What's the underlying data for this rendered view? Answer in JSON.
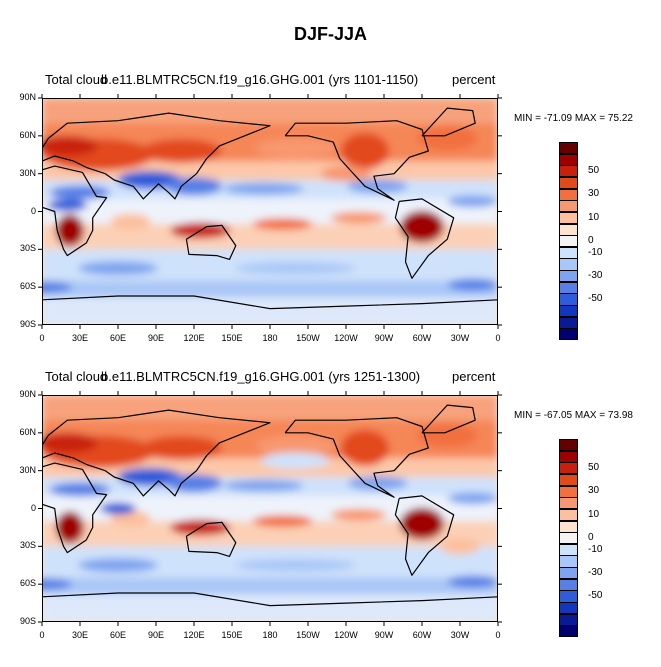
{
  "title": "DJF-JJA",
  "colorbar": {
    "colors": [
      "#650000",
      "#9e0000",
      "#c9200e",
      "#e24a1a",
      "#f26f3f",
      "#f89870",
      "#fcc09e",
      "#fde2cf",
      "#f4f4f4",
      "#cfe2fb",
      "#a8c6f7",
      "#7ea4ef",
      "#5680e6",
      "#2f5cd9",
      "#1236bd",
      "#0a1a96",
      "#00006e"
    ],
    "labels": [
      "50",
      "30",
      "10",
      "0",
      "-10",
      "-30",
      "-50"
    ]
  },
  "panels": [
    {
      "left_label": "Total cloud",
      "center_label": "b.e11.BLMTRC5CN.f19_g16.GHG.001 (yrs 1101-1150)",
      "right_label": "percent",
      "minmax": "MIN = -71.09 MAX =  75.22"
    },
    {
      "left_label": "Total cloud",
      "center_label": "b.e11.BLMTRC5CN.f19_g16.GHG.001 (yrs 1251-1300)",
      "right_label": "percent",
      "minmax": "MIN = -67.05 MAX =  73.98"
    }
  ],
  "lat_ticks": [
    "90N",
    "60N",
    "30N",
    "0",
    "30S",
    "60S",
    "90S"
  ],
  "lon_ticks": [
    "0",
    "30E",
    "60E",
    "90E",
    "120E",
    "150E",
    "180",
    "150W",
    "120W",
    "90W",
    "60W",
    "30W",
    "0"
  ]
}
